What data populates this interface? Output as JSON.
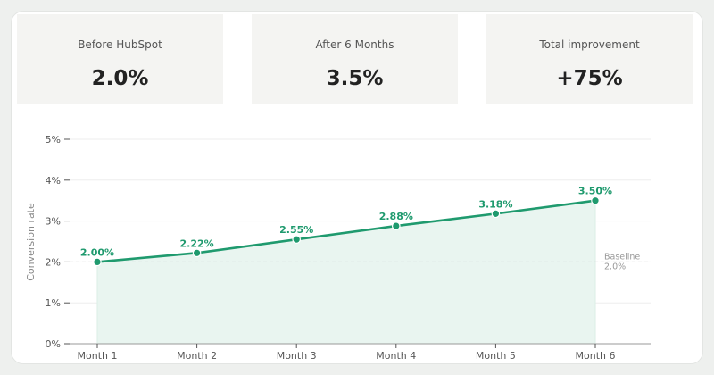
{
  "kpis": [
    {
      "label": "Before HubSpot",
      "value": "2.0%"
    },
    {
      "label": "After 6 Months",
      "value": "3.5%"
    },
    {
      "label": "Total improvement",
      "value": "+75%"
    }
  ],
  "colors": {
    "accent": "#1f9a6e",
    "fill": "#e9f5f0",
    "grid": "#eeeeee",
    "baseline": "#cccccc"
  },
  "chart_data": {
    "type": "line",
    "categories": [
      "Month 1",
      "Month 2",
      "Month 3",
      "Month 4",
      "Month 5",
      "Month 6"
    ],
    "series": [
      {
        "values": [
          2.0,
          2.22,
          2.55,
          2.88,
          3.18,
          3.5
        ],
        "labels": [
          "2.00%",
          "2.22%",
          "2.55%",
          "2.88%",
          "3.18%",
          "3.50%"
        ]
      }
    ],
    "ylabel": "Conversion rate",
    "ylim": [
      0,
      5
    ],
    "yticks": [
      0,
      1,
      2,
      3,
      4,
      5
    ],
    "ytick_labels": [
      "0%",
      "1%",
      "2%",
      "3%",
      "4%",
      "5%"
    ],
    "baseline": {
      "value": 2.0,
      "label_line1": "Baseline",
      "label_line2": "2.0%"
    },
    "grid": true,
    "area_fill": true
  }
}
